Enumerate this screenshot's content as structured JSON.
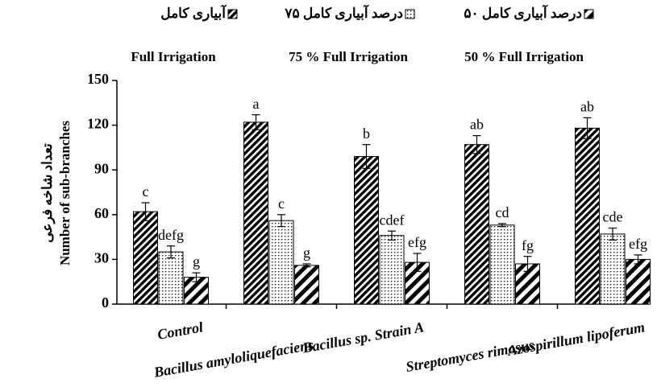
{
  "chart_data": {
    "type": "bar",
    "y_label": "Number of sub-branches",
    "y_label_fa": "تعداد شاخه فرعی",
    "categories": [
      "Control",
      "Bacillus amyloliquefaciens",
      "Bacillus sp. Strain A",
      "Streptomyces rimosus",
      "Azospirillum lipoferum"
    ],
    "series": [
      {
        "name": "Full Irrigation",
        "name_fa": "آبیاری کامل",
        "color": "#000000",
        "pattern": "hatch",
        "values": [
          62,
          122,
          99,
          107,
          118
        ],
        "errors": [
          6,
          5,
          8,
          6,
          7
        ],
        "labels": [
          "c",
          "a",
          "b",
          "ab",
          "ab"
        ]
      },
      {
        "name": "75 % Full Irrigation",
        "name_fa": "۷۵ درصد آبیاری کامل",
        "color": "#000000",
        "pattern": "dots",
        "values": [
          35,
          56,
          46,
          53,
          47
        ],
        "errors": [
          4,
          4,
          3,
          1,
          4
        ],
        "labels": [
          "defg",
          "c",
          "cdef",
          "cd",
          "cde"
        ]
      },
      {
        "name": "50 % Full Irrigation",
        "name_fa": "۵۰ درصد آبیاری کامل",
        "color": "#000000",
        "pattern": "stripes",
        "values": [
          18,
          26,
          28,
          27,
          30
        ],
        "errors": [
          3,
          1,
          6,
          5,
          3
        ],
        "labels": [
          "g",
          "g",
          "efg",
          "fg",
          "efg"
        ]
      }
    ],
    "ylim": [
      0,
      150
    ],
    "yticks": [
      0,
      30,
      60,
      90,
      120,
      150
    ]
  }
}
